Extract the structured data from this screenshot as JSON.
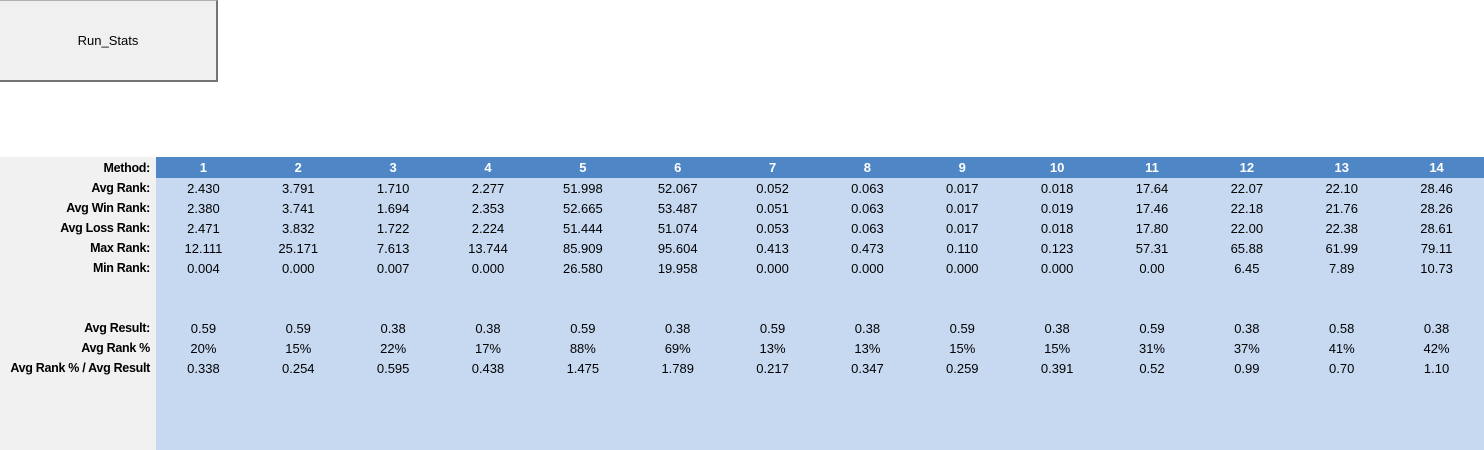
{
  "run_button": {
    "label": "Run_Stats"
  },
  "colors": {
    "header_bg": "#4e86c6",
    "header_text": "#ffffff",
    "body_bg": "#c6d9f1",
    "label_bg": "#f1f1f1",
    "button_bg": "#f0f0f0",
    "text": "#000000"
  },
  "table": {
    "corner_label": "Method:",
    "columns": [
      "1",
      "2",
      "3",
      "4",
      "5",
      "6",
      "7",
      "8",
      "9",
      "10",
      "11",
      "12",
      "13",
      "14"
    ],
    "rows": [
      {
        "label": "Avg Rank:",
        "values": [
          "2.430",
          "3.791",
          "1.710",
          "2.277",
          "51.998",
          "52.067",
          "0.052",
          "0.063",
          "0.017",
          "0.018",
          "17.64",
          "22.07",
          "22.10",
          "28.46"
        ]
      },
      {
        "label": "Avg Win Rank:",
        "values": [
          "2.380",
          "3.741",
          "1.694",
          "2.353",
          "52.665",
          "53.487",
          "0.051",
          "0.063",
          "0.017",
          "0.019",
          "17.46",
          "22.18",
          "21.76",
          "28.26"
        ]
      },
      {
        "label": "Avg Loss Rank:",
        "values": [
          "2.471",
          "3.832",
          "1.722",
          "2.224",
          "51.444",
          "51.074",
          "0.053",
          "0.063",
          "0.017",
          "0.018",
          "17.80",
          "22.00",
          "22.38",
          "28.61"
        ]
      },
      {
        "label": "Max Rank:",
        "values": [
          "12.111",
          "25.171",
          "7.613",
          "13.744",
          "85.909",
          "95.604",
          "0.413",
          "0.473",
          "0.110",
          "0.123",
          "57.31",
          "65.88",
          "61.99",
          "79.11"
        ]
      },
      {
        "label": "Min Rank:",
        "values": [
          "0.004",
          "0.000",
          "0.007",
          "0.000",
          "26.580",
          "19.958",
          "0.000",
          "0.000",
          "0.000",
          "0.000",
          "0.00",
          "6.45",
          "7.89",
          "10.73"
        ]
      },
      {
        "label": "",
        "values": [
          "",
          "",
          "",
          "",
          "",
          "",
          "",
          "",
          "",
          "",
          "",
          "",
          "",
          ""
        ]
      },
      {
        "label": "",
        "values": [
          "",
          "",
          "",
          "",
          "",
          "",
          "",
          "",
          "",
          "",
          "",
          "",
          "",
          ""
        ]
      },
      {
        "label": "Avg Result:",
        "values": [
          "0.59",
          "0.59",
          "0.38",
          "0.38",
          "0.59",
          "0.38",
          "0.59",
          "0.38",
          "0.59",
          "0.38",
          "0.59",
          "0.38",
          "0.58",
          "0.38"
        ]
      },
      {
        "label": "Avg Rank %",
        "values": [
          "20%",
          "15%",
          "22%",
          "17%",
          "88%",
          "69%",
          "13%",
          "13%",
          "15%",
          "15%",
          "31%",
          "37%",
          "41%",
          "42%"
        ]
      },
      {
        "label": "Avg Rank % / Avg Result",
        "values": [
          "0.338",
          "0.254",
          "0.595",
          "0.438",
          "1.475",
          "1.789",
          "0.217",
          "0.347",
          "0.259",
          "0.391",
          "0.52",
          "0.99",
          "0.70",
          "1.10"
        ]
      }
    ]
  }
}
